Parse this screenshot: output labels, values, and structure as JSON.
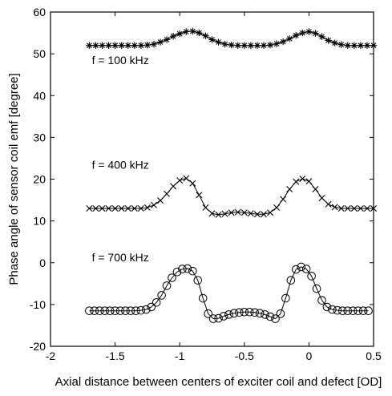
{
  "chart_data": {
    "type": "line",
    "xlabel": "Axial distance between centers of exciter coil and defect [OD]",
    "ylabel": "Phase angle of sensor coil emf [degree]",
    "xlim": [
      -2,
      0.5
    ],
    "ylim": [
      -20,
      60
    ],
    "xticks": [
      "-2",
      "-1.5",
      "-1",
      "-0.5",
      "0",
      "0.5"
    ],
    "yticks": [
      "60",
      "50",
      "40",
      "30",
      "20",
      "10",
      "0",
      "-10",
      "-20"
    ],
    "grid": false,
    "annotations": [
      {
        "text": "f = 100 kHz",
        "x": -1.68,
        "y": 47.5
      },
      {
        "text": "f = 400 kHz",
        "x": -1.68,
        "y": 22.5
      },
      {
        "text": "f = 700 kHz",
        "x": -1.68,
        "y": 0.3
      }
    ],
    "series": [
      {
        "marker": "asterisk",
        "x": [
          -1.7,
          -1.65,
          -1.6,
          -1.55,
          -1.5,
          -1.45,
          -1.4,
          -1.35,
          -1.3,
          -1.25,
          -1.2,
          -1.15,
          -1.1,
          -1.05,
          -1.0,
          -0.95,
          -0.9,
          -0.85,
          -0.8,
          -0.75,
          -0.7,
          -0.65,
          -0.6,
          -0.55,
          -0.5,
          -0.45,
          -0.4,
          -0.35,
          -0.3,
          -0.25,
          -0.2,
          -0.15,
          -0.1,
          -0.05,
          0.0,
          0.05,
          0.1,
          0.15,
          0.2,
          0.25,
          0.3,
          0.35,
          0.4,
          0.45,
          0.5
        ],
        "y": [
          52,
          52,
          52,
          52,
          52,
          52,
          52,
          52,
          52,
          52.1,
          52.3,
          52.8,
          53.4,
          54.2,
          54.8,
          55.3,
          55.4,
          55.0,
          54.3,
          53.4,
          52.8,
          52.3,
          52.1,
          52,
          52,
          52,
          52,
          52,
          52.1,
          52.4,
          52.9,
          53.6,
          54.4,
          55.0,
          55.3,
          54.9,
          54.1,
          53.2,
          52.6,
          52.2,
          52,
          52,
          52,
          52,
          52
        ]
      },
      {
        "marker": "x",
        "x": [
          -1.7,
          -1.65,
          -1.6,
          -1.55,
          -1.5,
          -1.45,
          -1.4,
          -1.35,
          -1.3,
          -1.25,
          -1.2,
          -1.15,
          -1.1,
          -1.05,
          -1.0,
          -0.95,
          -0.9,
          -0.85,
          -0.8,
          -0.75,
          -0.7,
          -0.65,
          -0.6,
          -0.55,
          -0.5,
          -0.45,
          -0.4,
          -0.35,
          -0.3,
          -0.25,
          -0.2,
          -0.15,
          -0.1,
          -0.05,
          0.0,
          0.05,
          0.1,
          0.15,
          0.2,
          0.25,
          0.3,
          0.35,
          0.4,
          0.45,
          0.5
        ],
        "y": [
          13,
          13,
          13,
          13,
          13,
          13,
          13,
          13,
          13,
          13.2,
          13.8,
          14.9,
          16.5,
          18.3,
          19.7,
          20.2,
          19.0,
          16.2,
          13.2,
          11.8,
          11.5,
          11.7,
          12.0,
          12.1,
          12.0,
          11.8,
          11.6,
          11.6,
          12.0,
          13.2,
          15.2,
          17.6,
          19.4,
          20.1,
          19.5,
          17.6,
          15.5,
          14.0,
          13.3,
          13.0,
          13,
          13,
          13,
          13,
          13
        ]
      },
      {
        "marker": "circle",
        "x": [
          -1.7,
          -1.66,
          -1.62,
          -1.58,
          -1.54,
          -1.5,
          -1.46,
          -1.42,
          -1.38,
          -1.34,
          -1.3,
          -1.26,
          -1.22,
          -1.18,
          -1.14,
          -1.1,
          -1.06,
          -1.02,
          -0.98,
          -0.94,
          -0.9,
          -0.86,
          -0.82,
          -0.78,
          -0.74,
          -0.7,
          -0.66,
          -0.62,
          -0.58,
          -0.54,
          -0.5,
          -0.46,
          -0.42,
          -0.38,
          -0.34,
          -0.3,
          -0.26,
          -0.22,
          -0.18,
          -0.14,
          -0.1,
          -0.06,
          -0.02,
          0.02,
          0.06,
          0.1,
          0.14,
          0.18,
          0.22,
          0.26,
          0.3,
          0.34,
          0.38,
          0.42,
          0.46
        ],
        "y": [
          -11.5,
          -11.5,
          -11.5,
          -11.5,
          -11.5,
          -11.5,
          -11.5,
          -11.5,
          -11.5,
          -11.5,
          -11.4,
          -11.2,
          -10.6,
          -9.5,
          -7.8,
          -5.5,
          -3.6,
          -2.2,
          -1.5,
          -1.4,
          -2.0,
          -4.2,
          -8.5,
          -12.2,
          -13.4,
          -13.3,
          -12.8,
          -12.4,
          -12.1,
          -11.9,
          -11.8,
          -11.8,
          -11.9,
          -12.1,
          -12.4,
          -12.9,
          -13.4,
          -12.2,
          -8.5,
          -4.2,
          -1.6,
          -1.0,
          -1.5,
          -3.2,
          -6.2,
          -9.0,
          -10.6,
          -11.2,
          -11.4,
          -11.5,
          -11.5,
          -11.5,
          -11.5,
          -11.5,
          -11.5
        ]
      }
    ]
  }
}
